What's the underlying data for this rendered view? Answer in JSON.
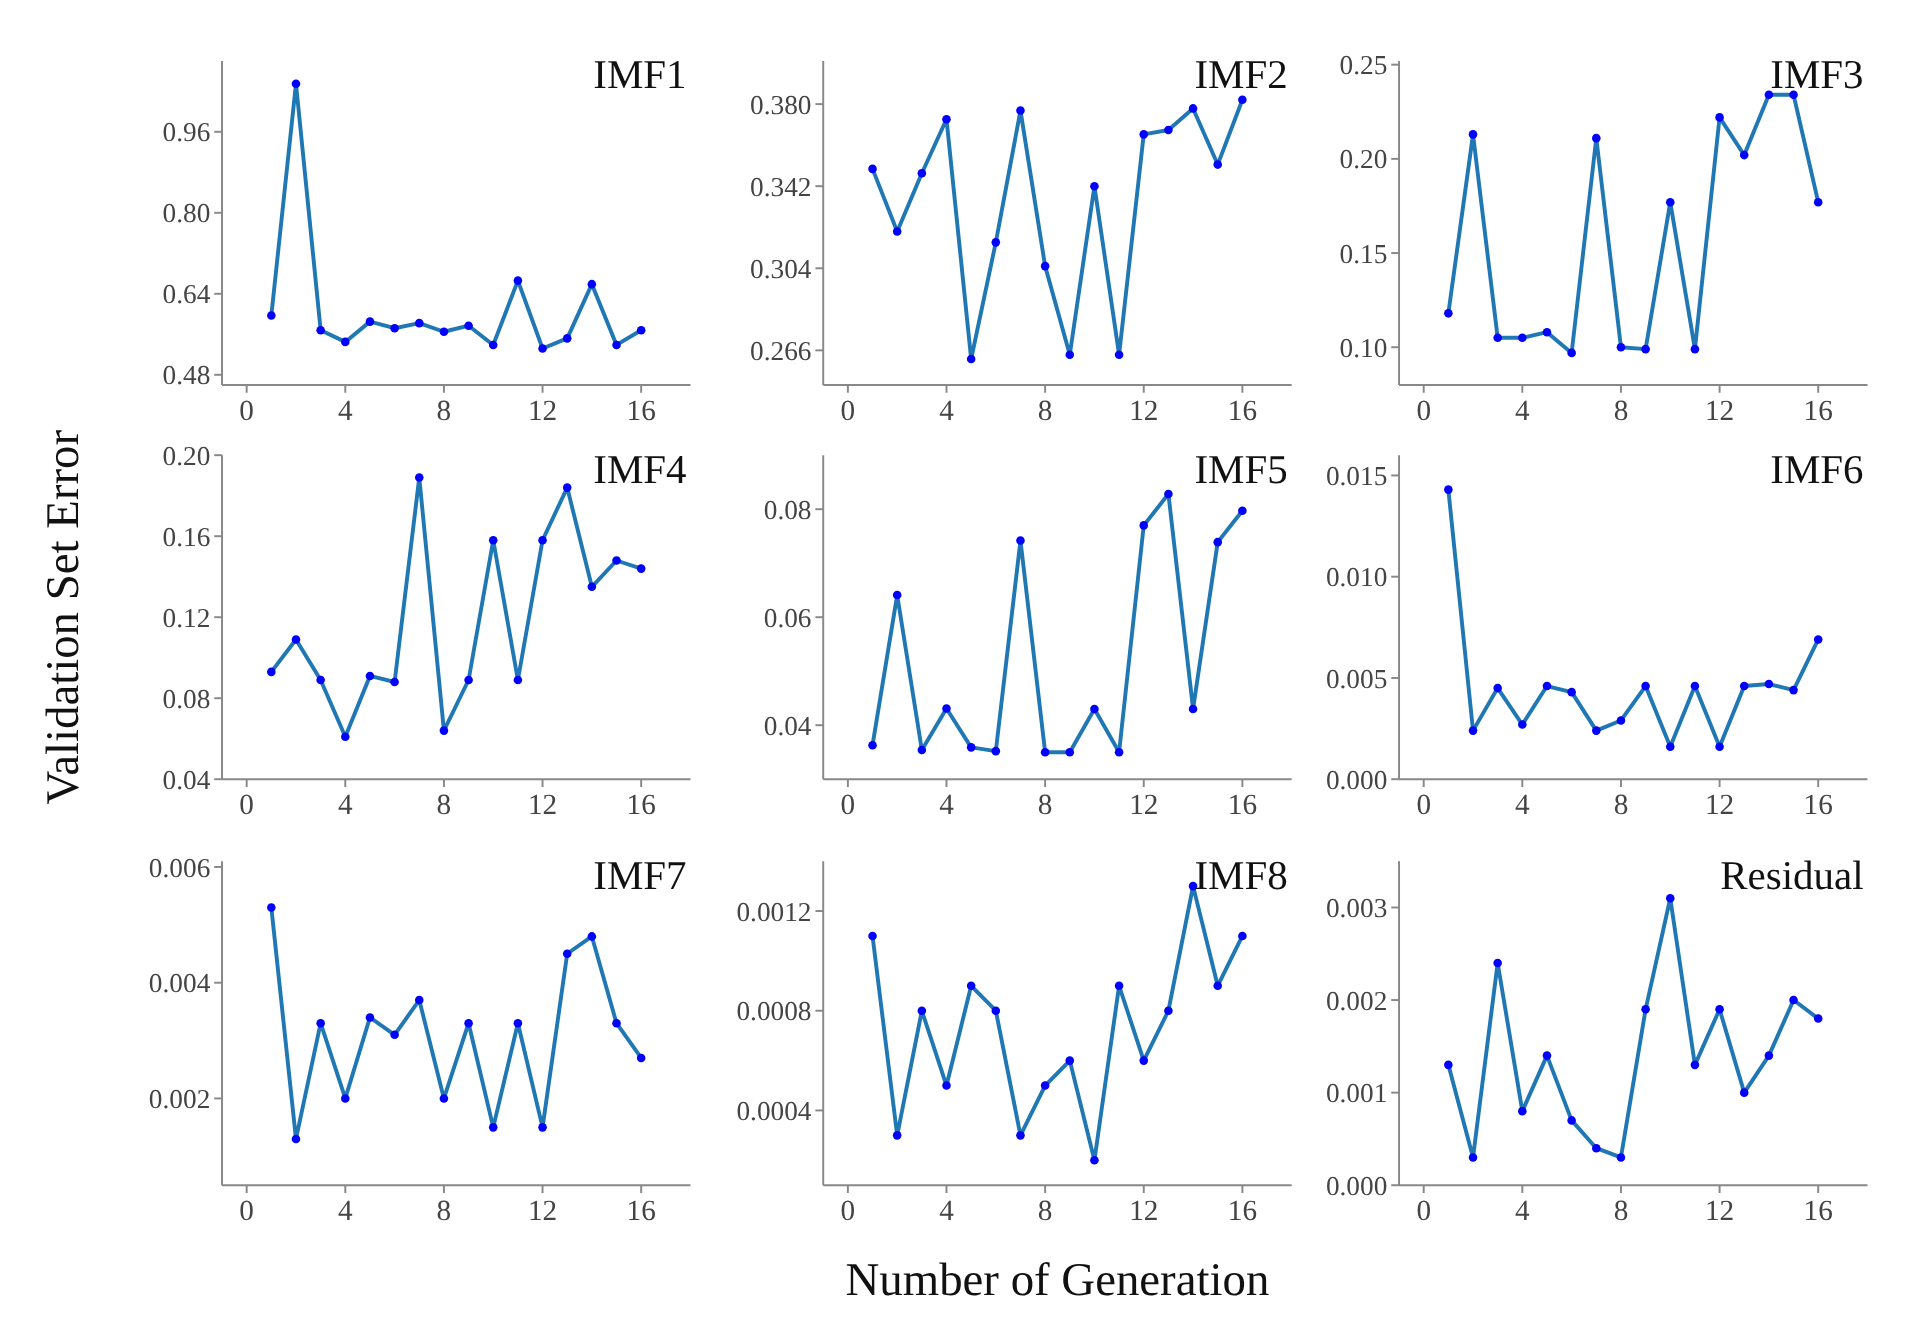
{
  "chart_data": [
    {
      "type": "line",
      "title": "IMF1",
      "x": [
        1,
        2,
        3,
        4,
        5,
        6,
        7,
        8,
        9,
        10,
        11,
        12,
        13,
        14,
        15,
        16
      ],
      "xlim": [
        -1,
        18
      ],
      "xticks": [
        0,
        4,
        8,
        12,
        16
      ],
      "ylim": [
        0.46,
        1.1
      ],
      "yticks": [
        0.48,
        0.64,
        {
          "value": 0.8,
          "label": "0.80"
        },
        0.96
      ],
      "marker": "circle",
      "grid": false,
      "series": [
        {
          "color": "#1f77b4",
          "values": [
            0.597,
            1.055,
            0.568,
            0.545,
            0.585,
            0.572,
            0.582,
            0.565,
            0.577,
            0.539,
            0.666,
            0.532,
            0.552,
            0.659,
            0.539,
            0.568
          ]
        }
      ]
    },
    {
      "type": "line",
      "title": "IMF2",
      "x": [
        1,
        2,
        3,
        4,
        5,
        6,
        7,
        8,
        9,
        10,
        11,
        12,
        13,
        14,
        15,
        16
      ],
      "xlim": [
        -1,
        18
      ],
      "xticks": [
        0,
        4,
        8,
        12,
        16
      ],
      "ylim": [
        0.25,
        0.4
      ],
      "yticks": [
        0.266,
        0.304,
        0.342,
        {
          "value": 0.38,
          "label": "0.380"
        }
      ],
      "marker": "circle",
      "grid": false,
      "series": [
        {
          "color": "#1f77b4",
          "values": [
            0.35,
            0.321,
            0.348,
            0.373,
            0.262,
            0.316,
            0.377,
            0.305,
            0.264,
            0.342,
            0.264,
            0.366,
            0.368,
            0.378,
            0.352,
            0.382
          ]
        }
      ]
    },
    {
      "type": "line",
      "title": "IMF3",
      "x": [
        1,
        2,
        3,
        4,
        5,
        6,
        7,
        8,
        9,
        10,
        11,
        12,
        13,
        14,
        15,
        16
      ],
      "xlim": [
        -1,
        18
      ],
      "xticks": [
        0,
        4,
        8,
        12,
        16
      ],
      "ylim": [
        0.08,
        0.252
      ],
      "yticks": [
        {
          "value": 0.1,
          "label": "0.10"
        },
        0.15,
        {
          "value": 0.2,
          "label": "0.20"
        },
        0.25
      ],
      "marker": "circle",
      "grid": false,
      "series": [
        {
          "color": "#1f77b4",
          "values": [
            0.118,
            0.213,
            0.105,
            0.105,
            0.108,
            0.097,
            0.211,
            0.1,
            0.099,
            0.177,
            0.099,
            0.222,
            0.202,
            0.234,
            0.234,
            0.177
          ]
        }
      ]
    },
    {
      "type": "line",
      "title": "IMF4",
      "ylabel": "Validation Set Error",
      "x": [
        1,
        2,
        3,
        4,
        5,
        6,
        7,
        8,
        9,
        10,
        11,
        12,
        13,
        14,
        15,
        16
      ],
      "xlim": [
        -1,
        18
      ],
      "xticks": [
        0,
        4,
        8,
        12,
        16
      ],
      "ylim": [
        0.04,
        0.2
      ],
      "yticks": [
        0.04,
        0.08,
        0.12,
        0.16,
        {
          "value": 0.2,
          "label": "0.20"
        }
      ],
      "marker": "circle",
      "grid": false,
      "series": [
        {
          "color": "#1f77b4",
          "values": [
            0.093,
            0.109,
            0.089,
            0.061,
            0.091,
            0.088,
            0.189,
            0.064,
            0.089,
            0.158,
            0.089,
            0.158,
            0.184,
            0.135,
            0.148,
            0.144
          ]
        }
      ]
    },
    {
      "type": "line",
      "title": "IMF5",
      "x": [
        1,
        2,
        3,
        4,
        5,
        6,
        7,
        8,
        9,
        10,
        11,
        12,
        13,
        14,
        15,
        16
      ],
      "xlim": [
        -1,
        18
      ],
      "xticks": [
        0,
        4,
        8,
        12,
        16
      ],
      "ylim": [
        0.03,
        0.09
      ],
      "yticks": [
        0.04,
        0.06,
        0.08
      ],
      "marker": "circle",
      "grid": false,
      "series": [
        {
          "color": "#1f77b4",
          "values": [
            0.0363,
            0.0641,
            0.0354,
            0.0431,
            0.0359,
            0.0352,
            0.0742,
            0.035,
            0.035,
            0.043,
            0.035,
            0.077,
            0.0828,
            0.043,
            0.0739,
            0.0797
          ]
        }
      ]
    },
    {
      "type": "line",
      "title": "IMF6",
      "x": [
        1,
        2,
        3,
        4,
        5,
        6,
        7,
        8,
        9,
        10,
        11,
        12,
        13,
        14,
        15,
        16
      ],
      "xlim": [
        -1,
        18
      ],
      "xticks": [
        0,
        4,
        8,
        12,
        16
      ],
      "ylim": [
        0,
        0.016
      ],
      "yticks": [
        {
          "value": 0,
          "label": "0.000"
        },
        0.005,
        {
          "value": 0.01,
          "label": "0.010"
        },
        0.015
      ],
      "marker": "circle",
      "grid": false,
      "series": [
        {
          "color": "#1f77b4",
          "values": [
            0.0143,
            0.0024,
            0.0045,
            0.0027,
            0.0046,
            0.0043,
            0.0024,
            0.0029,
            0.0046,
            0.0016,
            0.0046,
            0.0016,
            0.0046,
            0.0047,
            0.0044,
            0.0069
          ]
        }
      ]
    },
    {
      "type": "line",
      "title": "IMF7",
      "x": [
        1,
        2,
        3,
        4,
        5,
        6,
        7,
        8,
        9,
        10,
        11,
        12,
        13,
        14,
        15,
        16
      ],
      "xlim": [
        -1,
        18
      ],
      "xticks": [
        0,
        4,
        8,
        12,
        16
      ],
      "ylim": [
        0.0005,
        0.0061
      ],
      "yticks": [
        0.002,
        0.004,
        0.006
      ],
      "marker": "circle",
      "grid": false,
      "series": [
        {
          "color": "#1f77b4",
          "values": [
            0.0053,
            0.0013,
            0.0033,
            0.002,
            0.0034,
            0.0031,
            0.0037,
            0.002,
            0.0033,
            0.0015,
            0.0033,
            0.0015,
            0.0045,
            0.0048,
            0.0033,
            0.0027
          ]
        }
      ]
    },
    {
      "type": "line",
      "title": "IMF8",
      "xlabel": "Number of Generation",
      "x": [
        1,
        2,
        3,
        4,
        5,
        6,
        7,
        8,
        9,
        10,
        11,
        12,
        13,
        14,
        15,
        16
      ],
      "xlim": [
        -1,
        18
      ],
      "xticks": [
        0,
        4,
        8,
        12,
        16
      ],
      "ylim": [
        0.0001,
        0.0014
      ],
      "yticks": [
        0.0004,
        0.0008,
        0.0012
      ],
      "marker": "circle",
      "grid": false,
      "series": [
        {
          "color": "#1f77b4",
          "values": [
            0.0011,
            0.0003,
            0.0008,
            0.0005,
            0.0009,
            0.0008,
            0.0003,
            0.0005,
            0.0006,
            0.0002,
            0.0009,
            0.0006,
            0.0008,
            0.0013,
            0.0009,
            0.0011
          ]
        }
      ]
    },
    {
      "type": "line",
      "title": "Residual",
      "x": [
        1,
        2,
        3,
        4,
        5,
        6,
        7,
        8,
        9,
        10,
        11,
        12,
        13,
        14,
        15,
        16
      ],
      "xlim": [
        -1,
        18
      ],
      "xticks": [
        0,
        4,
        8,
        12,
        16
      ],
      "ylim": [
        0,
        0.0035
      ],
      "yticks": [
        {
          "value": 0,
          "label": "0.000"
        },
        0.001,
        0.002,
        0.003
      ],
      "marker": "circle",
      "grid": false,
      "series": [
        {
          "color": "#1f77b4",
          "values": [
            0.0013,
            0.0003,
            0.0024,
            0.0008,
            0.0014,
            0.0007,
            0.0004,
            0.0003,
            0.0019,
            0.0031,
            0.0013,
            0.0019,
            0.001,
            0.0014,
            0.002,
            0.0018
          ]
        }
      ]
    }
  ]
}
